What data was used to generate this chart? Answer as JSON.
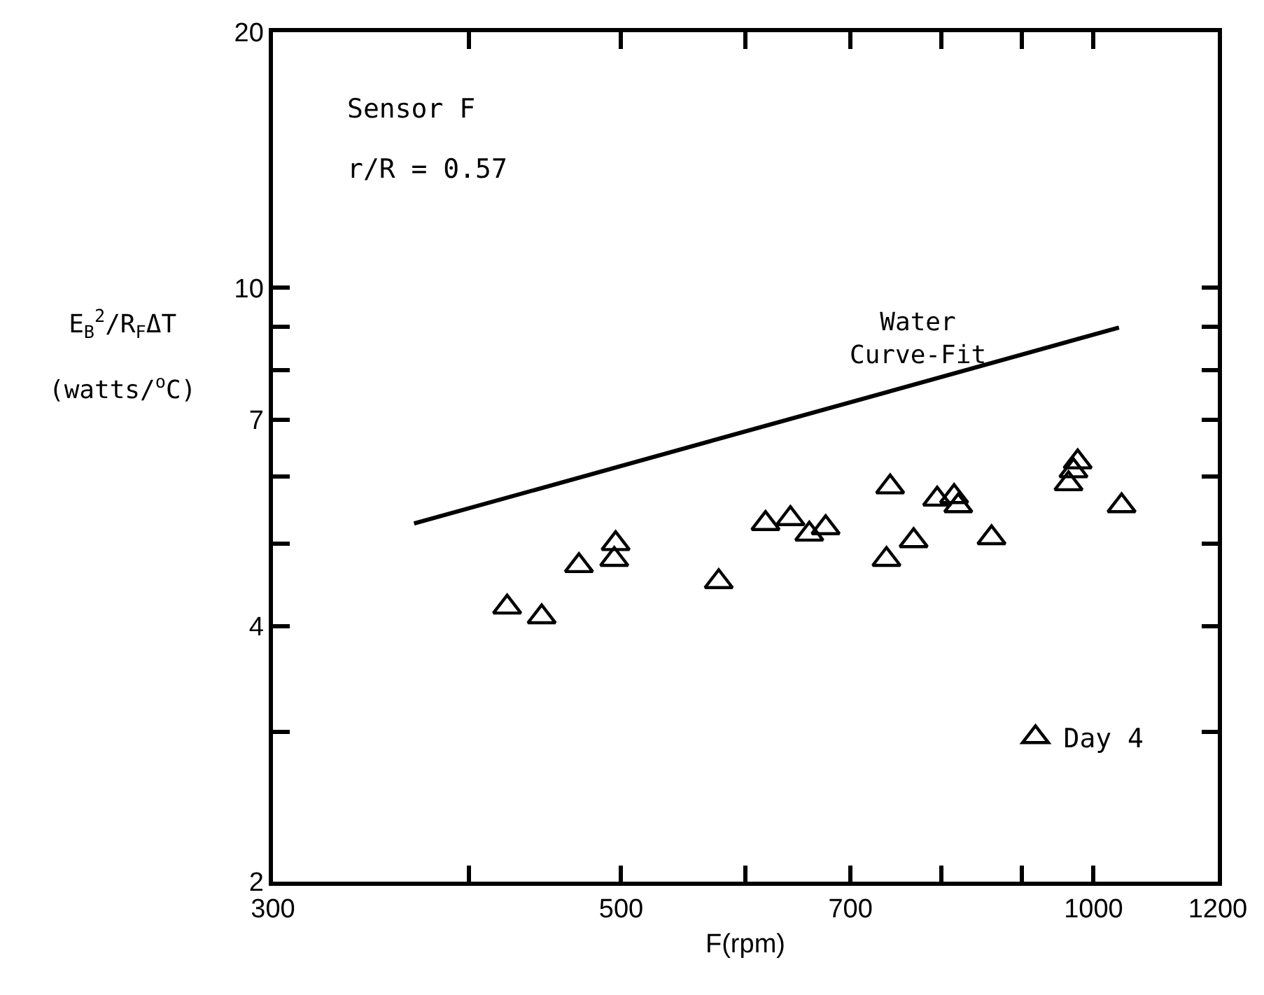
{
  "chart_data": {
    "type": "scatter",
    "xlabel": "F(rpm)",
    "ylabel": "E$_{B}$$^{2}$/R$_{F}$ΔT (watts/$^{o}$C)",
    "annotations": [
      "Sensor F",
      "r/R = 0.57"
    ],
    "series": [
      {
        "name": "Day 4",
        "color": "#000000",
        "marker": "triangle",
        "x": [
          423,
          445,
          470,
          496,
          495,
          577,
          618,
          641,
          659,
          675,
          742,
          738,
          768,
          795,
          815,
          820,
          861,
          964,
          971,
          977,
          1042
        ],
        "values": [
          4.21,
          4.1,
          4.71,
          5.0,
          4.79,
          4.51,
          5.28,
          5.35,
          5.13,
          5.22,
          5.83,
          4.79,
          5.04,
          5.64,
          5.68,
          5.54,
          5.08,
          5.88,
          6.09,
          6.24,
          5.54
        ]
      },
      {
        "name": "Water Curve-Fit",
        "type": "line",
        "color": "#000000",
        "x": [
          369,
          1038
        ],
        "values": [
          5.28,
          8.98
        ]
      }
    ],
    "log": "xy",
    "xlim": [
      300,
      1200
    ],
    "xticks": [
      300,
      {
        "value": 400,
        "label": null
      },
      500,
      {
        "value": 600,
        "label": null
      },
      700,
      {
        "value": 800,
        "label": null
      },
      {
        "value": 900,
        "label": null
      },
      1000,
      1200
    ],
    "ylim": [
      2,
      20
    ],
    "yticks": [
      2,
      {
        "value": 3,
        "label": null
      },
      4,
      {
        "value": 5,
        "label": null
      },
      {
        "value": 6,
        "label": null
      },
      7,
      {
        "value": 8,
        "label": null
      },
      {
        "value": 9,
        "label": null
      },
      10,
      20
    ],
    "grid": false,
    "legend": "bottom right"
  }
}
